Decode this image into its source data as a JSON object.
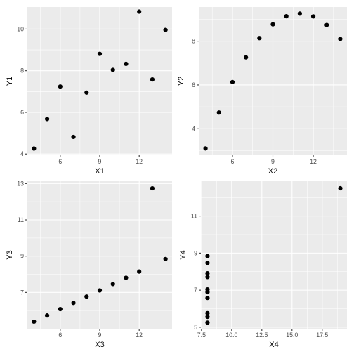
{
  "colors": {
    "panel": "#ebebeb",
    "grid": "#ffffff",
    "point": "#000000",
    "tick_label": "#4d4d4d"
  },
  "chart_data": [
    {
      "type": "scatter",
      "xlabel": "X1",
      "ylabel": "Y1",
      "xlim": [
        3.5,
        14.5
      ],
      "ylim": [
        3.94,
        11.06
      ],
      "xticks": [
        6,
        9,
        12
      ],
      "xtick_labels": [
        "6",
        "9",
        "12"
      ],
      "yticks": [
        4,
        6,
        8,
        10
      ],
      "ytick_labels": [
        "4",
        "6",
        "8",
        "10"
      ],
      "grid": true,
      "x": [
        10,
        8,
        13,
        9,
        11,
        14,
        6,
        4,
        12,
        7,
        5
      ],
      "y": [
        8.04,
        6.95,
        7.58,
        8.81,
        8.33,
        9.96,
        7.24,
        4.26,
        10.84,
        4.82,
        5.68
      ]
    },
    {
      "type": "scatter",
      "xlabel": "X2",
      "ylabel": "Y2",
      "xlim": [
        3.5,
        14.5
      ],
      "ylim": [
        2.79,
        9.56
      ],
      "xticks": [
        6,
        9,
        12
      ],
      "xtick_labels": [
        "6",
        "9",
        "12"
      ],
      "yticks": [
        4,
        6,
        8
      ],
      "ytick_labels": [
        "4",
        "6",
        "8"
      ],
      "grid": true,
      "x": [
        10,
        8,
        13,
        9,
        11,
        14,
        6,
        4,
        12,
        7,
        5
      ],
      "y": [
        9.14,
        8.14,
        8.74,
        8.77,
        9.26,
        8.1,
        6.13,
        3.1,
        9.13,
        7.26,
        4.74
      ]
    },
    {
      "type": "scatter",
      "xlabel": "X3",
      "ylabel": "Y3",
      "xlim": [
        3.5,
        14.5
      ],
      "ylim": [
        5.0,
        13.13
      ],
      "xticks": [
        6,
        9,
        12
      ],
      "xtick_labels": [
        "6",
        "9",
        "12"
      ],
      "yticks": [
        7,
        9,
        11,
        13
      ],
      "ytick_labels": [
        "7",
        "9",
        "11",
        "13"
      ],
      "grid": true,
      "x": [
        10,
        8,
        13,
        9,
        11,
        14,
        6,
        4,
        12,
        7,
        5
      ],
      "y": [
        7.46,
        6.77,
        12.74,
        7.11,
        7.81,
        8.84,
        6.08,
        5.39,
        8.15,
        6.42,
        5.73
      ]
    },
    {
      "type": "scatter",
      "xlabel": "X4",
      "ylabel": "Y4",
      "xlim": [
        7.45,
        19.55
      ],
      "ylim": [
        4.92,
        12.88
      ],
      "xticks": [
        7.5,
        10.0,
        12.5,
        15.0,
        17.5
      ],
      "xtick_labels": [
        "7.5",
        "10.0",
        "12.5",
        "15.0",
        "17.5"
      ],
      "yticks": [
        5,
        7,
        9,
        11
      ],
      "ytick_labels": [
        "5",
        "7",
        "9",
        "11"
      ],
      "grid": true,
      "x": [
        8,
        8,
        8,
        8,
        8,
        8,
        8,
        19,
        8,
        8,
        8
      ],
      "y": [
        6.58,
        5.76,
        7.71,
        8.84,
        8.47,
        7.04,
        5.25,
        12.5,
        5.56,
        7.91,
        6.89
      ]
    }
  ]
}
